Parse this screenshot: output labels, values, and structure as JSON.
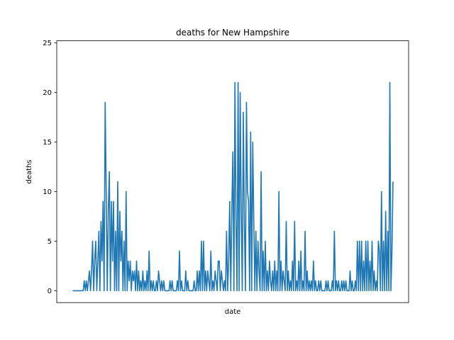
{
  "chart_data": {
    "type": "line",
    "title": "deaths for New Hampshire",
    "xlabel": "date",
    "ylabel": "deaths",
    "ylim": [
      -1.2,
      25.2
    ],
    "yticks": [
      0,
      5,
      10,
      15,
      20,
      25
    ],
    "xticks": [],
    "grid": false,
    "legend": "none",
    "colors": {
      "line": "#1f77b4",
      "axes": "#000000",
      "background": "#ffffff"
    },
    "series": [
      {
        "values": [
          0,
          0,
          0,
          0,
          0,
          0,
          0,
          0,
          0,
          0,
          0,
          1,
          0,
          1,
          0,
          1,
          2,
          0,
          2,
          5,
          0,
          3,
          5,
          0,
          3,
          6,
          0,
          7,
          3,
          9,
          0,
          19,
          10,
          0,
          8,
          12,
          0,
          9,
          3,
          9,
          0,
          6,
          0,
          11,
          0,
          8,
          3,
          6,
          0,
          5,
          0,
          10,
          0,
          3,
          1,
          3,
          0,
          2,
          1,
          2,
          0,
          3,
          0,
          2,
          0,
          1,
          0,
          2,
          0,
          1,
          0,
          2,
          0,
          4,
          0,
          1,
          0,
          1,
          0,
          0,
          1,
          0,
          2,
          1,
          0,
          1,
          0,
          1,
          0,
          0,
          0,
          0,
          0,
          1,
          0,
          1,
          0,
          0,
          0,
          0,
          1,
          0,
          4,
          0,
          1,
          0,
          0,
          0,
          2,
          0,
          1,
          0,
          0,
          0,
          0,
          0,
          1,
          0,
          0,
          2,
          0,
          2,
          0,
          5,
          0,
          5,
          0,
          2,
          0,
          2,
          1,
          0,
          4,
          0,
          1,
          0,
          2,
          1,
          0,
          3,
          3,
          0,
          2,
          1,
          0,
          1,
          0,
          6,
          0,
          3,
          9,
          0,
          8,
          14,
          0,
          21,
          7,
          0,
          21,
          0,
          20,
          8,
          0,
          18,
          7,
          0,
          19,
          10,
          9,
          0,
          16,
          0,
          15,
          7,
          0,
          6,
          0,
          5,
          2,
          0,
          12,
          0,
          4,
          0,
          5,
          0,
          2,
          0,
          3,
          1,
          0,
          2,
          0,
          3,
          0,
          2,
          0,
          10,
          0,
          3,
          0,
          2,
          1,
          0,
          7,
          0,
          2,
          0,
          1,
          0,
          3,
          0,
          7,
          0,
          1,
          0,
          3,
          0,
          4,
          0,
          1,
          0,
          6,
          0,
          2,
          0,
          1,
          0,
          1,
          0,
          3,
          0,
          1,
          0,
          0,
          1,
          0,
          1,
          0,
          0,
          0,
          0,
          1,
          0,
          1,
          0,
          0,
          0,
          1,
          0,
          6,
          0,
          1,
          0,
          1,
          0,
          0,
          1,
          0,
          1,
          0,
          1,
          0,
          0,
          0,
          2,
          0,
          1,
          0,
          0,
          1,
          0,
          5,
          0,
          5,
          0,
          5,
          0,
          3,
          0,
          5,
          0,
          5,
          0,
          3,
          0,
          5,
          0,
          2,
          0,
          1,
          0,
          5,
          4,
          0,
          10,
          0,
          5,
          0,
          8,
          0,
          6,
          0,
          21,
          0,
          4,
          11
        ]
      }
    ]
  }
}
